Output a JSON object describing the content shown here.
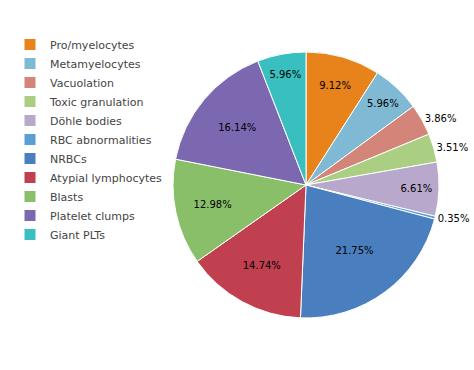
{
  "chart_data": {
    "type": "pie",
    "categories": [
      "Pro/myelocytes",
      "Metamyelocytes",
      "Vacuolation",
      "Toxic granulation",
      "Döhle bodies",
      "RBC abnormalities",
      "NRBCs",
      "Atypial lymphocytes",
      "Blasts",
      "Platelet clumps",
      "Giant PLTs"
    ],
    "values": [
      9.12,
      5.96,
      3.86,
      3.51,
      6.61,
      0.35,
      21.75,
      14.74,
      12.98,
      16.14,
      5.96
    ],
    "value_labels": [
      "9.12%",
      "5.96%",
      "3.86%",
      "3.51%",
      "6.61%",
      "0.35%",
      "21.75%",
      "14.74%",
      "12.98%",
      "16.14%",
      "5.96%"
    ],
    "colors": [
      "#E8821A",
      "#7FB9D4",
      "#D4857A",
      "#AACF82",
      "#B8A8CC",
      "#5A9FD4",
      "#4A7FBF",
      "#C04050",
      "#8ABF6A",
      "#7B68B0",
      "#3ABFC0"
    ],
    "data_labels": true,
    "legend": "upper left"
  }
}
